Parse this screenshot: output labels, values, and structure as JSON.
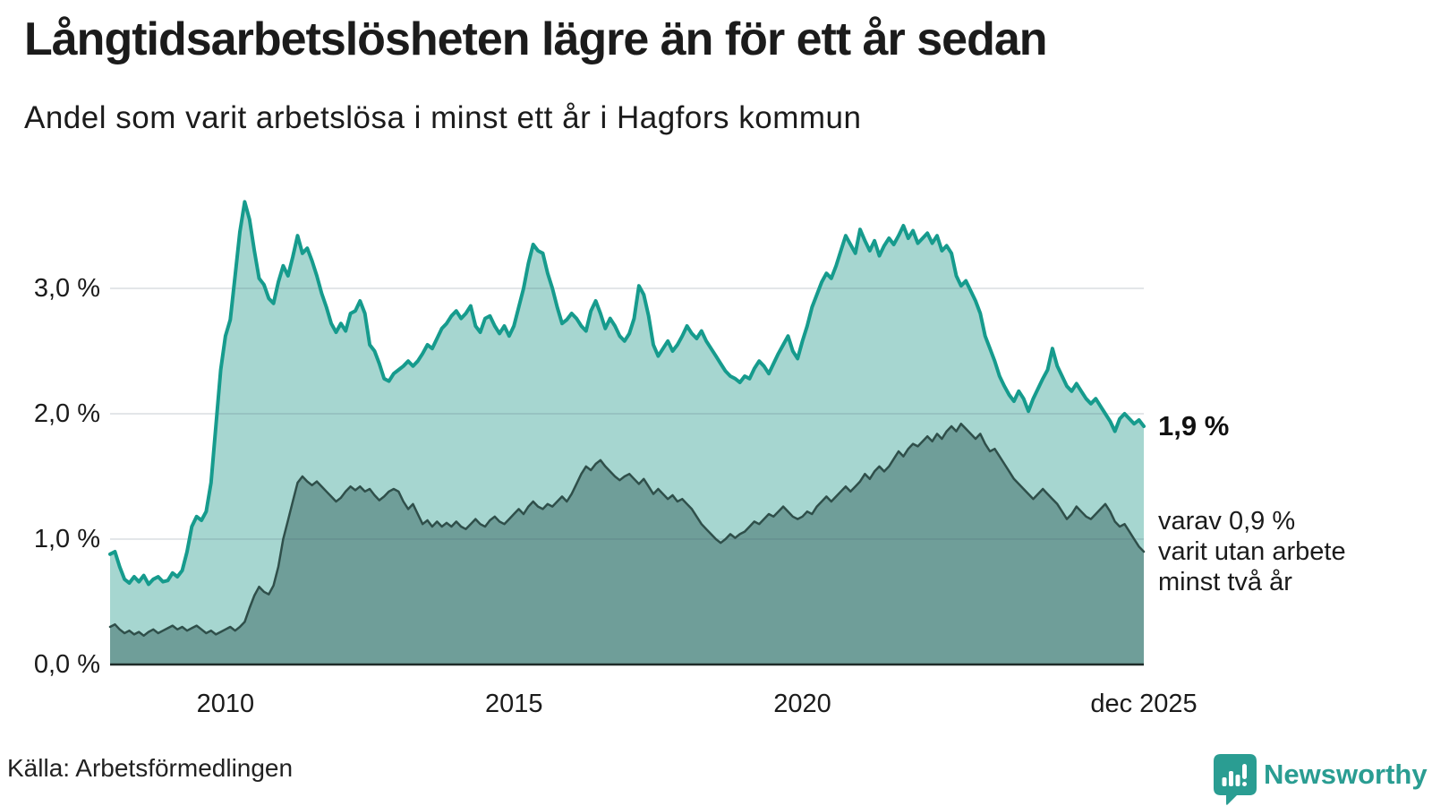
{
  "header": {
    "title": "Långtidsarbetslösheten lägre än för ett år sedan",
    "subtitle": "Andel som varit arbetslösa i minst ett år i Hagfors kommun"
  },
  "chart_data": {
    "type": "area",
    "title": "Långtidsarbetslösheten lägre än för ett år sedan",
    "subtitle": "Andel som varit arbetslösa i minst ett år i Hagfors kommun",
    "grid": true,
    "x": {
      "min": 2008.0,
      "max": 2025.917,
      "start_year": 2008,
      "step_months": 1,
      "ticks": [
        {
          "label": "2010",
          "year": 2010.0
        },
        {
          "label": "2015",
          "year": 2015.0
        },
        {
          "label": "2020",
          "year": 2020.0
        },
        {
          "label": "dec 2025",
          "year": 2025.917
        }
      ]
    },
    "y": {
      "min": 0,
      "max": 3.8,
      "unit": "%",
      "ticks": [
        {
          "label": "0,0 %",
          "value": 0.0
        },
        {
          "label": "1,0 %",
          "value": 1.0
        },
        {
          "label": "2,0 %",
          "value": 2.0
        },
        {
          "label": "3,0 %",
          "value": 3.0
        }
      ]
    },
    "series": [
      {
        "name": "arbetslösa minst ett år",
        "color": "#169b8d",
        "fill": "#a6d6d0",
        "line_width": 4,
        "values": [
          0.88,
          0.9,
          0.78,
          0.68,
          0.65,
          0.7,
          0.66,
          0.71,
          0.64,
          0.68,
          0.7,
          0.66,
          0.67,
          0.73,
          0.7,
          0.75,
          0.9,
          1.1,
          1.18,
          1.15,
          1.22,
          1.45,
          1.9,
          2.35,
          2.62,
          2.75,
          3.1,
          3.45,
          3.69,
          3.55,
          3.3,
          3.08,
          3.03,
          2.92,
          2.88,
          3.05,
          3.18,
          3.1,
          3.25,
          3.42,
          3.28,
          3.32,
          3.22,
          3.1,
          2.96,
          2.85,
          2.72,
          2.65,
          2.72,
          2.66,
          2.8,
          2.82,
          2.9,
          2.8,
          2.55,
          2.5,
          2.4,
          2.28,
          2.26,
          2.32,
          2.35,
          2.38,
          2.42,
          2.38,
          2.42,
          2.48,
          2.55,
          2.52,
          2.6,
          2.68,
          2.72,
          2.78,
          2.82,
          2.76,
          2.8,
          2.86,
          2.7,
          2.65,
          2.76,
          2.78,
          2.7,
          2.64,
          2.7,
          2.62,
          2.7,
          2.85,
          3.0,
          3.2,
          3.35,
          3.3,
          3.28,
          3.12,
          3.0,
          2.85,
          2.72,
          2.75,
          2.8,
          2.76,
          2.7,
          2.66,
          2.82,
          2.9,
          2.8,
          2.68,
          2.76,
          2.7,
          2.62,
          2.58,
          2.64,
          2.76,
          3.02,
          2.95,
          2.78,
          2.55,
          2.46,
          2.52,
          2.58,
          2.5,
          2.55,
          2.62,
          2.7,
          2.64,
          2.6,
          2.66,
          2.58,
          2.52,
          2.46,
          2.4,
          2.34,
          2.3,
          2.28,
          2.25,
          2.3,
          2.28,
          2.36,
          2.42,
          2.38,
          2.32,
          2.4,
          2.48,
          2.55,
          2.62,
          2.5,
          2.44,
          2.58,
          2.7,
          2.85,
          2.95,
          3.05,
          3.12,
          3.08,
          3.18,
          3.3,
          3.42,
          3.35,
          3.28,
          3.47,
          3.38,
          3.3,
          3.38,
          3.26,
          3.34,
          3.4,
          3.35,
          3.42,
          3.5,
          3.4,
          3.46,
          3.36,
          3.4,
          3.44,
          3.36,
          3.42,
          3.3,
          3.34,
          3.28,
          3.1,
          3.02,
          3.06,
          2.98,
          2.9,
          2.8,
          2.62,
          2.52,
          2.42,
          2.3,
          2.22,
          2.15,
          2.1,
          2.18,
          2.12,
          2.02,
          2.12,
          2.2,
          2.28,
          2.35,
          2.52,
          2.38,
          2.3,
          2.22,
          2.18,
          2.24,
          2.18,
          2.12,
          2.08,
          2.12,
          2.06,
          2.0,
          1.94,
          1.86,
          1.96,
          2.0,
          1.96,
          1.92,
          1.95,
          1.9
        ]
      },
      {
        "name": "varav utan arbete minst två år",
        "color": "#2f4f4a",
        "fill": "#6f9e99",
        "line_width": 2.5,
        "values": [
          0.3,
          0.32,
          0.28,
          0.25,
          0.27,
          0.24,
          0.26,
          0.23,
          0.26,
          0.28,
          0.25,
          0.27,
          0.29,
          0.31,
          0.28,
          0.3,
          0.27,
          0.29,
          0.31,
          0.28,
          0.25,
          0.27,
          0.24,
          0.26,
          0.28,
          0.3,
          0.27,
          0.3,
          0.34,
          0.45,
          0.55,
          0.62,
          0.58,
          0.56,
          0.63,
          0.78,
          1.0,
          1.15,
          1.3,
          1.45,
          1.5,
          1.46,
          1.43,
          1.46,
          1.42,
          1.38,
          1.34,
          1.3,
          1.33,
          1.38,
          1.42,
          1.39,
          1.42,
          1.38,
          1.4,
          1.35,
          1.31,
          1.34,
          1.38,
          1.4,
          1.38,
          1.3,
          1.24,
          1.28,
          1.2,
          1.12,
          1.15,
          1.1,
          1.14,
          1.1,
          1.13,
          1.1,
          1.14,
          1.1,
          1.08,
          1.12,
          1.16,
          1.12,
          1.1,
          1.15,
          1.18,
          1.14,
          1.12,
          1.16,
          1.2,
          1.24,
          1.2,
          1.26,
          1.3,
          1.26,
          1.24,
          1.28,
          1.26,
          1.3,
          1.34,
          1.3,
          1.36,
          1.44,
          1.52,
          1.58,
          1.55,
          1.6,
          1.63,
          1.58,
          1.54,
          1.5,
          1.47,
          1.5,
          1.52,
          1.48,
          1.44,
          1.48,
          1.42,
          1.36,
          1.4,
          1.36,
          1.32,
          1.35,
          1.3,
          1.32,
          1.28,
          1.24,
          1.18,
          1.12,
          1.08,
          1.04,
          1.0,
          0.97,
          1.0,
          1.04,
          1.01,
          1.04,
          1.06,
          1.1,
          1.14,
          1.12,
          1.16,
          1.2,
          1.18,
          1.22,
          1.26,
          1.22,
          1.18,
          1.16,
          1.18,
          1.22,
          1.2,
          1.26,
          1.3,
          1.34,
          1.3,
          1.34,
          1.38,
          1.42,
          1.38,
          1.42,
          1.46,
          1.52,
          1.48,
          1.54,
          1.58,
          1.54,
          1.58,
          1.64,
          1.7,
          1.66,
          1.72,
          1.76,
          1.74,
          1.78,
          1.82,
          1.78,
          1.84,
          1.8,
          1.86,
          1.9,
          1.86,
          1.92,
          1.88,
          1.84,
          1.8,
          1.84,
          1.76,
          1.7,
          1.72,
          1.66,
          1.6,
          1.54,
          1.48,
          1.44,
          1.4,
          1.36,
          1.32,
          1.36,
          1.4,
          1.36,
          1.32,
          1.28,
          1.22,
          1.16,
          1.2,
          1.26,
          1.22,
          1.18,
          1.16,
          1.2,
          1.24,
          1.28,
          1.22,
          1.14,
          1.1,
          1.12,
          1.06,
          1.0,
          0.94,
          0.9
        ]
      }
    ],
    "annotations": {
      "end_value_label": "1,9 %",
      "end_value": 1.9,
      "note_lines": [
        "varav 0,9 %",
        "varit utan arbete",
        "minst två år"
      ],
      "note_value": 0.9
    },
    "colors": {
      "grid": "rgba(70,85,105,0.15)",
      "axis": "#1e2b28",
      "background": "#ffffff"
    }
  },
  "footer": {
    "source": "Källa: Arbetsförmedlingen",
    "brand": "Newsworthy",
    "brand_color": "#2a9d92"
  }
}
